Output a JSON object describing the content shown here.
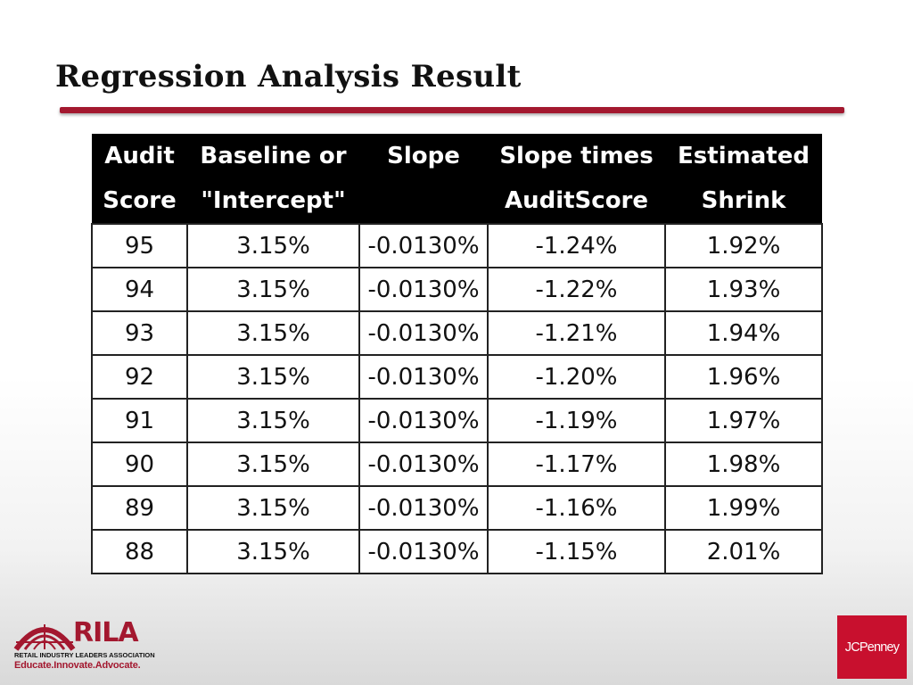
{
  "slide": {
    "title": "Regression Analysis Result"
  },
  "table": {
    "headers": [
      [
        "Audit",
        "Score"
      ],
      [
        "Baseline or",
        "\"Intercept\""
      ],
      [
        "Slope",
        ""
      ],
      [
        "Slope times",
        "AuditScore"
      ],
      [
        "Estimated",
        "Shrink"
      ]
    ],
    "rows": [
      [
        "95",
        "3.15%",
        "-0.0130%",
        "-1.24%",
        "1.92%"
      ],
      [
        "94",
        "3.15%",
        "-0.0130%",
        "-1.22%",
        "1.93%"
      ],
      [
        "93",
        "3.15%",
        "-0.0130%",
        "-1.21%",
        "1.94%"
      ],
      [
        "92",
        "3.15%",
        "-0.0130%",
        "-1.20%",
        "1.96%"
      ],
      [
        "91",
        "3.15%",
        "-0.0130%",
        "-1.19%",
        "1.97%"
      ],
      [
        "90",
        "3.15%",
        "-0.0130%",
        "-1.17%",
        "1.98%"
      ],
      [
        "89",
        "3.15%",
        "-0.0130%",
        "-1.16%",
        "1.99%"
      ],
      [
        "88",
        "3.15%",
        "-0.0130%",
        "-1.15%",
        "2.01%"
      ]
    ]
  },
  "logos": {
    "rila": {
      "name": "RILA",
      "subtitle": "RETAIL INDUSTRY LEADERS ASSOCIATION",
      "tagline": "Educate.Innovate.Advocate.",
      "color": "#a3182f"
    },
    "jcpenney": {
      "name": "JCPenney",
      "color": "#c8102e"
    }
  },
  "colors": {
    "accent": "#a3182f",
    "header_bg": "#000000",
    "header_text": "#ffffff"
  }
}
